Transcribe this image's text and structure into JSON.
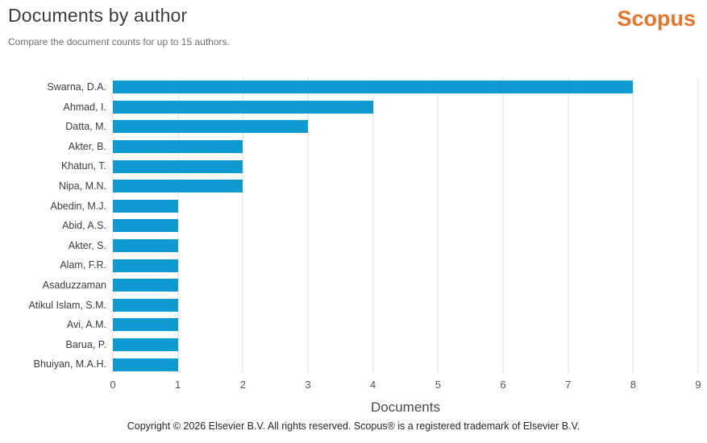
{
  "header": {
    "title": "Documents by author",
    "subtitle": "Compare the document counts for up to 15 authors.",
    "logo_text": "Scopus"
  },
  "chart_data": {
    "type": "bar",
    "orientation": "horizontal",
    "categories": [
      "Swarna, D.A.",
      "Ahmad, I.",
      "Datta, M.",
      "Akter, B.",
      "Khatun, T.",
      "Nipa, M.N.",
      "Abedin, M.J.",
      "Abid, A.S.",
      "Akter, S.",
      "Alam, F.R.",
      "Asaduzzaman",
      "Atikul Islam, S.M.",
      "Avi, A.M.",
      "Barua, P.",
      "Bhuiyan, M.A.H."
    ],
    "values": [
      8,
      4,
      3,
      2,
      2,
      2,
      1,
      1,
      1,
      1,
      1,
      1,
      1,
      1,
      1
    ],
    "title": "Documents by author",
    "xlabel": "Documents",
    "ylabel": "",
    "xlim": [
      0,
      9
    ],
    "xticks": [
      0,
      1,
      2,
      3,
      4,
      5,
      6,
      7,
      8,
      9
    ],
    "grid": true,
    "legend": "none"
  },
  "colors": {
    "bar": "#0d9ad0",
    "gridline": "#e0e0e0",
    "logo_orange": "#e8742a"
  },
  "footer": {
    "copyright": "Copyright © 2026 Elsevier B.V. All rights reserved. Scopus® is a registered trademark of Elsevier B.V."
  }
}
